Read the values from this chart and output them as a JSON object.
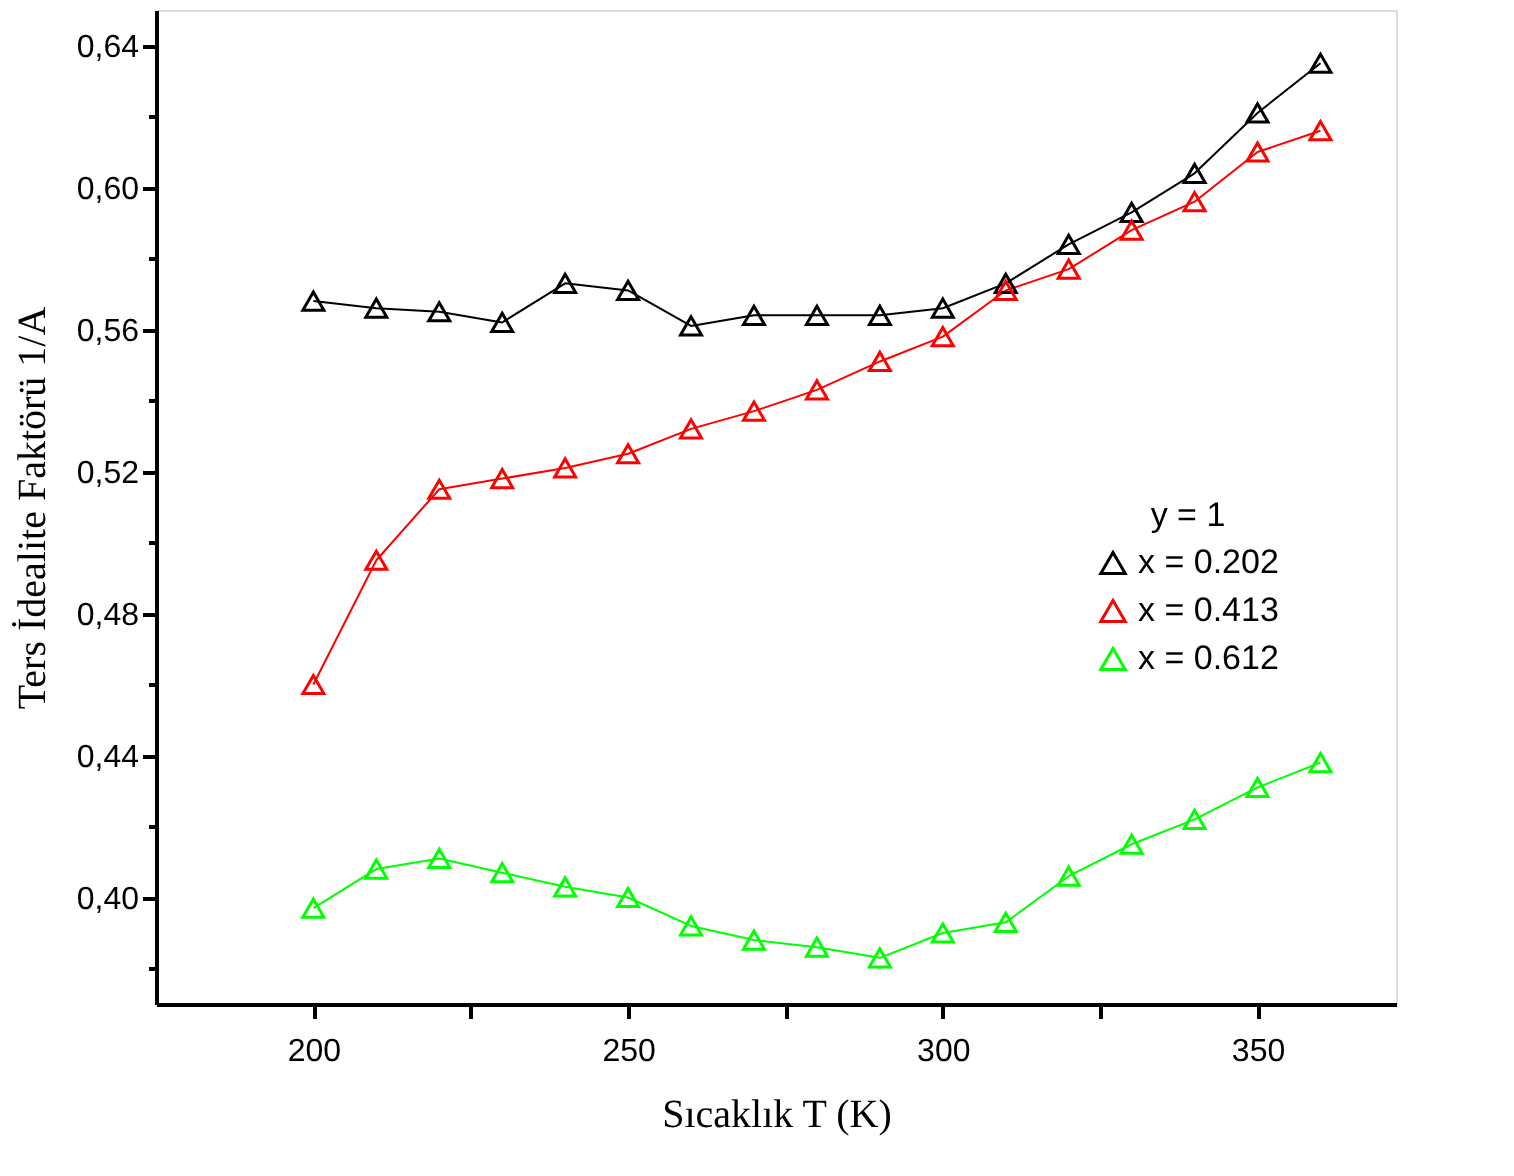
{
  "chart_data": {
    "type": "line",
    "xlabel": "Sıcaklık T (K)",
    "ylabel": "Ters İdealite Faktörü 1/A",
    "legend_title": "y = 1",
    "x": [
      200,
      210,
      220,
      230,
      240,
      250,
      260,
      270,
      280,
      290,
      300,
      310,
      320,
      330,
      340,
      350,
      360
    ],
    "series": [
      {
        "name": "x = 0.202",
        "color": "#000000",
        "values": [
          0.568,
          0.566,
          0.565,
          0.562,
          0.573,
          0.571,
          0.561,
          0.564,
          0.564,
          0.564,
          0.566,
          0.573,
          0.584,
          0.593,
          0.604,
          0.621,
          0.635
        ]
      },
      {
        "name": "x = 0.413",
        "color": "#ff0000",
        "values": [
          0.46,
          0.495,
          0.515,
          0.518,
          0.521,
          0.525,
          0.532,
          0.537,
          0.543,
          0.551,
          0.558,
          0.571,
          0.577,
          0.588,
          0.596,
          0.61,
          0.616
        ]
      },
      {
        "name": "x = 0.612",
        "color": "#00ff00",
        "values": [
          0.397,
          0.408,
          0.411,
          0.407,
          0.403,
          0.4,
          0.392,
          0.388,
          0.386,
          0.383,
          0.39,
          0.393,
          0.406,
          0.415,
          0.422,
          0.431,
          0.438
        ]
      }
    ],
    "xlim": [
      175,
      372
    ],
    "xticks": [
      200,
      {
        "value": 225,
        "label": null
      },
      250,
      {
        "value": 275,
        "label": null
      },
      300,
      {
        "value": 325,
        "label": null
      },
      350
    ],
    "ylim": [
      0.37,
      0.65
    ],
    "yticks": [
      {
        "value": 0.38,
        "label": null
      },
      {
        "value": 0.4,
        "label": "0,40"
      },
      {
        "value": 0.42,
        "label": null
      },
      {
        "value": 0.44,
        "label": "0,44"
      },
      {
        "value": 0.46,
        "label": null
      },
      {
        "value": 0.48,
        "label": "0,48"
      },
      {
        "value": 0.5,
        "label": null
      },
      {
        "value": 0.52,
        "label": "0,52"
      },
      {
        "value": 0.54,
        "label": null
      },
      {
        "value": 0.56,
        "label": "0,56"
      },
      {
        "value": 0.58,
        "label": null
      },
      {
        "value": 0.6,
        "label": "0,60"
      },
      {
        "value": 0.62,
        "label": null
      },
      {
        "value": 0.64,
        "label": "0,64"
      }
    ],
    "grid": false,
    "legend": "right",
    "marker": "triangle",
    "line_style": "solid"
  }
}
